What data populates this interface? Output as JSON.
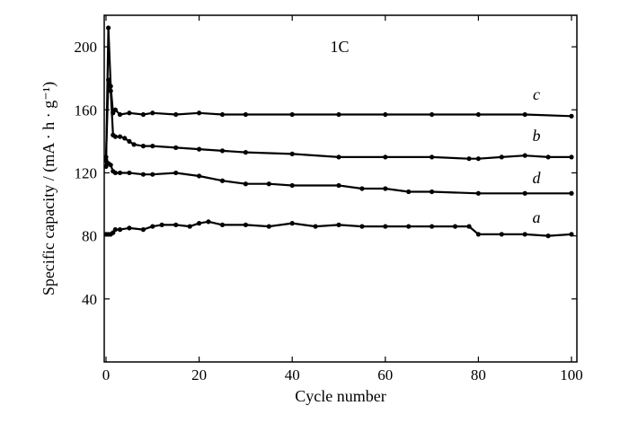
{
  "chart_data": {
    "type": "line",
    "title": "",
    "annotation": "1C",
    "xlabel": "Cycle number",
    "ylabel": "Specific capacity / (mA · h · g⁻¹)",
    "xlim": [
      0,
      100
    ],
    "ylim": [
      0,
      220
    ],
    "xticks": [
      0,
      20,
      40,
      60,
      80,
      100
    ],
    "yticks": [
      40,
      80,
      120,
      160,
      200
    ],
    "grid": false,
    "legend": "none",
    "colors": {
      "line": "#000000",
      "axis": "#000000"
    },
    "series": [
      {
        "name": "c",
        "x": [
          0,
          0.5,
          1,
          1.5,
          2,
          3,
          5,
          8,
          10,
          15,
          20,
          25,
          30,
          40,
          50,
          60,
          70,
          80,
          90,
          100
        ],
        "y": [
          124,
          212,
          175,
          158,
          160,
          157,
          158,
          157,
          158,
          157,
          158,
          157,
          157,
          157,
          157,
          157,
          157,
          157,
          157,
          156
        ]
      },
      {
        "name": "b",
        "x": [
          0,
          0.5,
          1,
          1.5,
          2,
          3,
          4,
          5,
          6,
          8,
          10,
          15,
          20,
          25,
          30,
          40,
          50,
          60,
          70,
          78,
          80,
          85,
          90,
          95,
          100
        ],
        "y": [
          130,
          179,
          172,
          144,
          143,
          143,
          142,
          140,
          138,
          137,
          137,
          136,
          135,
          134,
          133,
          132,
          130,
          130,
          130,
          129,
          129,
          130,
          131,
          130,
          130
        ]
      },
      {
        "name": "d",
        "x": [
          0,
          0.5,
          1,
          1.5,
          2,
          3,
          5,
          8,
          10,
          15,
          20,
          25,
          30,
          35,
          40,
          50,
          55,
          60,
          65,
          70,
          80,
          90,
          100
        ],
        "y": [
          128,
          126,
          125,
          121,
          120,
          120,
          120,
          119,
          119,
          120,
          118,
          115,
          113,
          113,
          112,
          112,
          110,
          110,
          108,
          108,
          107,
          107,
          107
        ]
      },
      {
        "name": "a",
        "x": [
          0,
          0.5,
          1,
          1.5,
          2,
          3,
          5,
          8,
          10,
          12,
          15,
          18,
          20,
          22,
          25,
          30,
          35,
          40,
          45,
          50,
          55,
          60,
          65,
          70,
          75,
          78,
          80,
          85,
          90,
          95,
          100
        ],
        "y": [
          81,
          81,
          81,
          82,
          84,
          84,
          85,
          84,
          86,
          87,
          87,
          86,
          88,
          89,
          87,
          87,
          86,
          88,
          86,
          87,
          86,
          86,
          86,
          86,
          86,
          86,
          81,
          81,
          81,
          80,
          81
        ]
      }
    ]
  }
}
